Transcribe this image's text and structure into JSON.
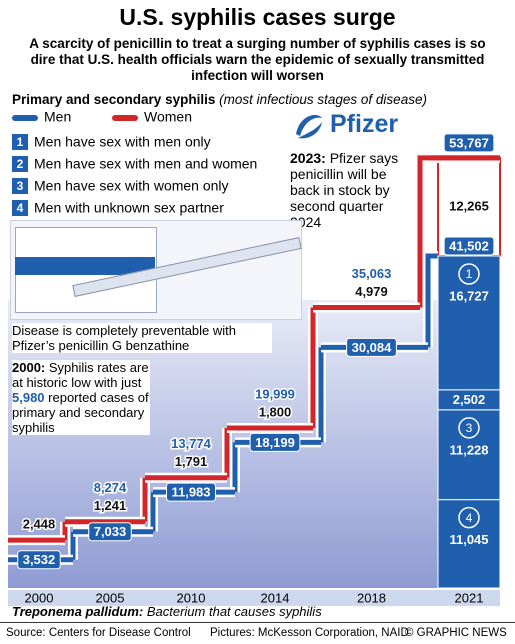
{
  "header": {
    "title": "U.S. syphilis cases surge",
    "subtitle": "A scarcity of penicillin to treat a surging number of syphilis cases is so dire that U.S. health officials warn the epidemic of sexually transmitted infection will worsen"
  },
  "chart_data": {
    "type": "step",
    "title": "Primary and secondary syphilis",
    "subtitle": "(most infectious stages of disease)",
    "categories": [
      "2000",
      "2005",
      "2010",
      "2014",
      "2018",
      "2021"
    ],
    "series": [
      {
        "name": "Men",
        "color": "#1f5fae",
        "values": [
          3532,
          7033,
          11983,
          18199,
          30084,
          41502
        ],
        "value_labels": [
          "3,532",
          "7,033",
          "11,983",
          "18,199",
          "30,084",
          "41,502"
        ]
      },
      {
        "name": "Women",
        "color": "#d3262b",
        "values": [
          2448,
          1241,
          1791,
          1800,
          4979,
          12265
        ],
        "value_labels": [
          "2,448",
          "1,241",
          "1,791",
          "1,800",
          "4,979",
          "12,265"
        ]
      }
    ],
    "total_labels": [
      null,
      "8,274",
      "13,774",
      "19,999",
      "35,063",
      "53,767"
    ],
    "ylim": [
      0,
      56000
    ],
    "groups": [
      {
        "number": "1",
        "label": "Men have sex with men only",
        "value": 16727,
        "value_label": "16,727"
      },
      {
        "number": "2",
        "label": "Men have sex with men and women",
        "value": 2502,
        "value_label": "2,502"
      },
      {
        "number": "3",
        "label": "Men have sex with women only",
        "value": 11228,
        "value_label": "11,228"
      },
      {
        "number": "4",
        "label": "Men with unknown sex partner",
        "value": 11045,
        "value_label": "11,045"
      }
    ]
  },
  "notes": {
    "pfizer_logo": "Pfizer",
    "pfizer": {
      "lead": "2023:",
      "text": " Pfizer says penicillin will be back in stock by second quarter 2024"
    },
    "preventable": "Disease is completely preventable with Pfizer’s penicillin G benzathine",
    "low": {
      "lead": "2000:",
      "text1": " Syphilis rates are at historic low with just ",
      "value": "5,980",
      "text2": " reported cases of primary and secondary syphilis"
    },
    "caption": {
      "lead": "Treponema pallidum:",
      "text": " Bacterium that causes syphilis"
    }
  },
  "footer": {
    "source": "Source: Centers for Disease Control",
    "pictures": "Pictures: McKesson Corporation, NAID",
    "credit": "© GRAPHIC NEWS"
  }
}
